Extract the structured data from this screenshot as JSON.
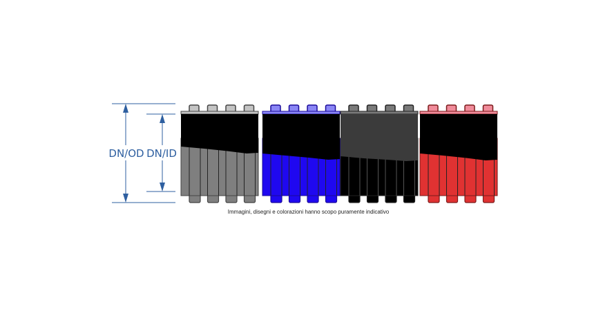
{
  "dimensions": {
    "outer_label": "DN/OD",
    "inner_label": "DN/ID",
    "color": "#2e5fa0"
  },
  "caption": "Immagini, disegni e colorazioni hanno scopo puramente indicativo",
  "pipes": [
    {
      "name": "gray",
      "outer": "#7f7f7f",
      "inner": "#000000",
      "teeth": "#c4c4c4",
      "edge": "#444444"
    },
    {
      "name": "blue",
      "outer": "#1f08f0",
      "inner": "#000000",
      "teeth": "#8a86f5",
      "edge": "#1a0a9a"
    },
    {
      "name": "black",
      "outer": "#000000",
      "inner": "#3b3b3b",
      "teeth": "#7a7a7a",
      "edge": "#222222"
    },
    {
      "name": "red",
      "outer": "#e03232",
      "inner": "#000000",
      "teeth": "#f08b9a",
      "edge": "#7a1a1a"
    }
  ]
}
